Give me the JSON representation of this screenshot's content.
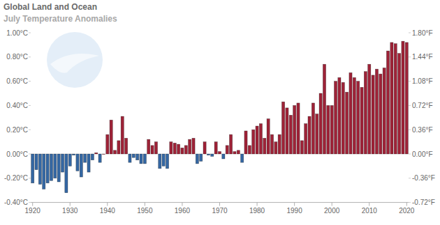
{
  "chart_data": {
    "type": "bar",
    "title": "Global Land and Ocean",
    "subtitle": "July Temperature Anomalies",
    "x": [
      1920,
      1921,
      1922,
      1923,
      1924,
      1925,
      1926,
      1927,
      1928,
      1929,
      1930,
      1931,
      1932,
      1933,
      1934,
      1935,
      1936,
      1937,
      1938,
      1939,
      1940,
      1941,
      1942,
      1943,
      1944,
      1945,
      1946,
      1947,
      1948,
      1949,
      1950,
      1951,
      1952,
      1953,
      1954,
      1955,
      1956,
      1957,
      1958,
      1959,
      1960,
      1961,
      1962,
      1963,
      1964,
      1965,
      1966,
      1967,
      1968,
      1969,
      1970,
      1971,
      1972,
      1973,
      1974,
      1975,
      1976,
      1977,
      1978,
      1979,
      1980,
      1981,
      1982,
      1983,
      1984,
      1985,
      1986,
      1987,
      1988,
      1989,
      1990,
      1991,
      1992,
      1993,
      1994,
      1995,
      1996,
      1997,
      1998,
      1999,
      2000,
      2001,
      2002,
      2003,
      2004,
      2005,
      2006,
      2007,
      2008,
      2009,
      2010,
      2011,
      2012,
      2013,
      2014,
      2015,
      2016,
      2017,
      2018,
      2019,
      2020
    ],
    "values": [
      -0.24,
      -0.13,
      -0.25,
      -0.29,
      -0.24,
      -0.22,
      -0.2,
      -0.23,
      -0.15,
      -0.32,
      -0.1,
      -0.01,
      -0.14,
      -0.19,
      -0.07,
      -0.15,
      -0.05,
      0.01,
      -0.07,
      0.0,
      0.16,
      0.28,
      0.03,
      0.11,
      0.31,
      0.13,
      -0.07,
      -0.03,
      -0.05,
      -0.08,
      -0.08,
      0.12,
      0.07,
      0.1,
      -0.12,
      -0.1,
      -0.12,
      0.1,
      0.09,
      0.08,
      0.05,
      0.07,
      0.12,
      0.13,
      -0.08,
      -0.06,
      0.1,
      -0.01,
      -0.02,
      0.1,
      0.02,
      -0.04,
      0.07,
      0.16,
      0.02,
      0.03,
      -0.07,
      0.19,
      0.07,
      0.2,
      0.23,
      0.25,
      0.13,
      0.29,
      0.16,
      0.1,
      0.16,
      0.43,
      0.38,
      0.32,
      0.4,
      0.42,
      0.11,
      0.25,
      0.31,
      0.42,
      0.33,
      0.5,
      0.74,
      0.4,
      0.4,
      0.6,
      0.63,
      0.59,
      0.51,
      0.67,
      0.63,
      0.6,
      0.55,
      0.68,
      0.74,
      0.65,
      0.7,
      0.66,
      0.71,
      0.85,
      0.92,
      0.91,
      0.83,
      0.93,
      0.92
    ],
    "colors": [
      "#3467a3",
      "#3467a3",
      "#3467a3",
      "#3467a3",
      "#3467a3",
      "#3467a3",
      "#3467a3",
      "#3467a3",
      "#3467a3",
      "#3467a3",
      "#3467a3",
      "#3467a3",
      "#3467a3",
      "#3467a3",
      "#3467a3",
      "#3467a3",
      "#3467a3",
      "#9e2237",
      "#3467a3",
      "#9e2237",
      "#9e2237",
      "#9e2237",
      "#9e2237",
      "#9e2237",
      "#9e2237",
      "#9e2237",
      "#3467a3",
      "#3467a3",
      "#3467a3",
      "#3467a3",
      "#3467a3",
      "#9e2237",
      "#9e2237",
      "#9e2237",
      "#3467a3",
      "#3467a3",
      "#3467a3",
      "#9e2237",
      "#9e2237",
      "#9e2237",
      "#9e2237",
      "#9e2237",
      "#9e2237",
      "#9e2237",
      "#3467a3",
      "#3467a3",
      "#9e2237",
      "#3467a3",
      "#3467a3",
      "#9e2237",
      "#9e2237",
      "#3467a3",
      "#9e2237",
      "#9e2237",
      "#9e2237",
      "#9e2237",
      "#3467a3",
      "#9e2237",
      "#9e2237",
      "#9e2237",
      "#9e2237",
      "#9e2237",
      "#9e2237",
      "#9e2237",
      "#9e2237",
      "#9e2237",
      "#9e2237",
      "#9e2237",
      "#9e2237",
      "#9e2237",
      "#9e2237",
      "#9e2237",
      "#9e2237",
      "#9e2237",
      "#9e2237",
      "#9e2237",
      "#9e2237",
      "#9e2237",
      "#9e2237",
      "#9e2237",
      "#9e2237",
      "#9e2237",
      "#9e2237",
      "#9e2237",
      "#9e2237",
      "#9e2237",
      "#9e2237",
      "#9e2237",
      "#9e2237",
      "#9e2237",
      "#9e2237",
      "#9e2237",
      "#9e2237",
      "#9e2237",
      "#9e2237",
      "#9e2237",
      "#9e2237",
      "#9e2237",
      "#9e2237",
      "#9e2237",
      "#9e2237"
    ],
    "xlim": [
      1919.5,
      2020.5
    ],
    "xticks": [
      1920,
      1930,
      1940,
      1950,
      1960,
      1970,
      1980,
      1990,
      2000,
      2010,
      2020
    ],
    "ylim": [
      -0.4,
      1.0
    ],
    "yticks": [
      {
        "value": -0.4,
        "label": "-0.40°C"
      },
      {
        "value": -0.2,
        "label": "-0.20°C"
      },
      {
        "value": 0.0,
        "label": "0.00°C"
      },
      {
        "value": 0.2,
        "label": "0.20°C"
      },
      {
        "value": 0.4,
        "label": "0.40°C"
      },
      {
        "value": 0.6,
        "label": "0.60°C"
      },
      {
        "value": 0.8,
        "label": "0.80°C"
      },
      {
        "value": 1.0,
        "label": "1.00°C"
      }
    ],
    "y2lim": [
      -0.72,
      1.8
    ],
    "y2ticks": [
      {
        "value": -0.72,
        "label": "-0.72°F"
      },
      {
        "value": -0.36,
        "label": "-0.36°F"
      },
      {
        "value": 0.0,
        "label": "0.00°F"
      },
      {
        "value": 0.36,
        "label": "0.36°F"
      },
      {
        "value": 0.72,
        "label": "0.72°F"
      },
      {
        "value": 1.08,
        "label": "1.08°F"
      },
      {
        "value": 1.44,
        "label": "1.44°F"
      },
      {
        "value": 1.8,
        "label": "1.80°F"
      }
    ],
    "grid": false
  }
}
